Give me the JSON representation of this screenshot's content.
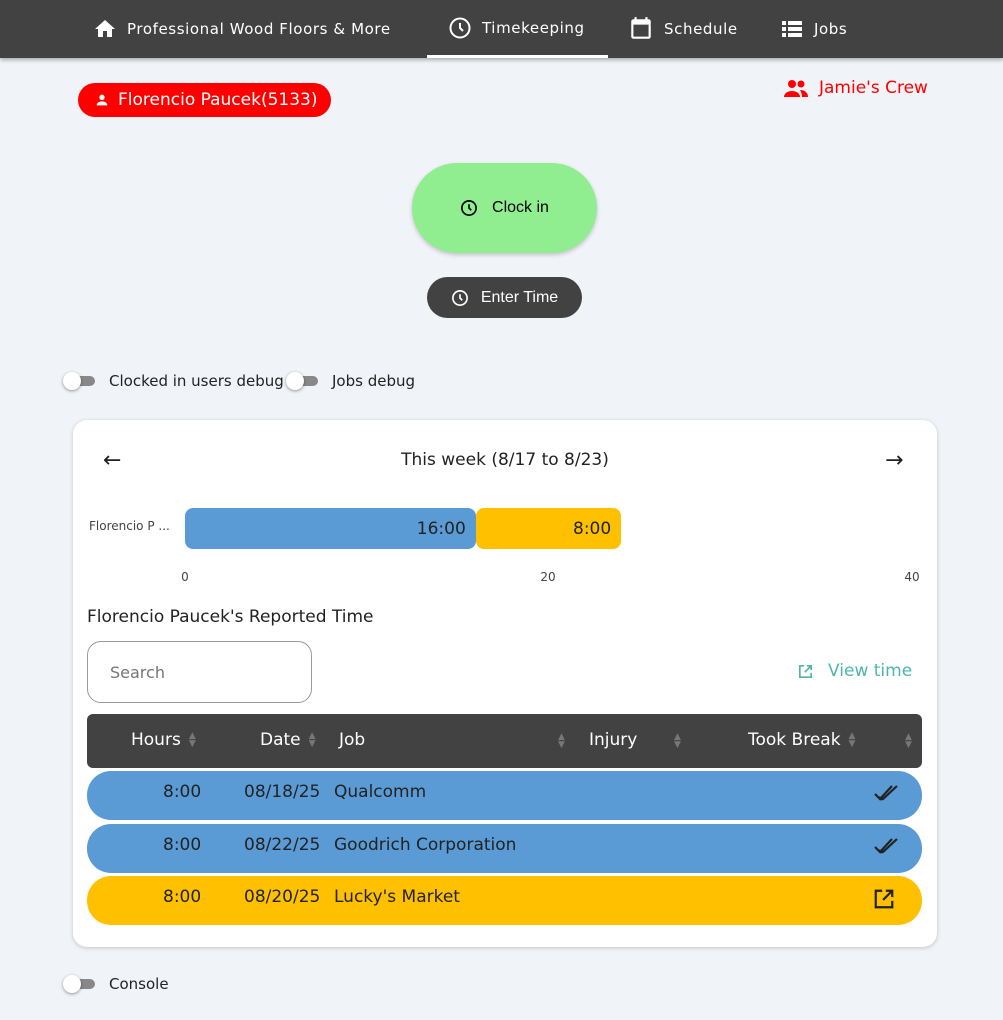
{
  "nav": {
    "items": [
      {
        "label": "Professional Wood Floors & More",
        "icon": "home-icon"
      },
      {
        "label": "Timekeeping",
        "icon": "clock-icon",
        "active": true
      },
      {
        "label": "Schedule",
        "icon": "calendar-icon"
      },
      {
        "label": "Jobs",
        "icon": "list-icon"
      }
    ]
  },
  "user": {
    "name": "Florencio Paucek(5133)",
    "crew": "Jamie's Crew",
    "color": "#ff0000"
  },
  "actions": {
    "clock_in": "Clock in",
    "enter_time": "Enter Time"
  },
  "toggles": {
    "clocked_in_debug": "Clocked in users debug",
    "jobs_debug": "Jobs debug",
    "console": "Console"
  },
  "week": {
    "label": "This week (8/17 to 8/23)"
  },
  "chart_data": {
    "type": "bar",
    "orientation": "horizontal",
    "stacked": true,
    "categories": [
      "Florencio P ..."
    ],
    "series": [
      {
        "values": [
          16
        ],
        "label": "16:00",
        "color": "#5b9bd5"
      },
      {
        "values": [
          8
        ],
        "label": "8:00",
        "color": "#ffc000"
      }
    ],
    "xlim": [
      0,
      40
    ],
    "xticks": [
      "0",
      "20",
      "40"
    ]
  },
  "reported": {
    "title": "Florencio Paucek's Reported Time",
    "search_placeholder": "Search",
    "view_time": "View time"
  },
  "table": {
    "headers": [
      "Hours",
      "Date",
      "Job",
      "Injury",
      "Took Break"
    ],
    "rows": [
      {
        "hours": "8:00",
        "date": "08/18/25",
        "job": "Qualcomm",
        "color": "#5b9bd5",
        "icon": "double-check-icon"
      },
      {
        "hours": "8:00",
        "date": "08/22/25",
        "job": "Goodrich Corporation",
        "color": "#5b9bd5",
        "icon": "double-check-icon"
      },
      {
        "hours": "8:00",
        "date": "08/20/25",
        "job": "Lucky's Market",
        "color": "#ffc000",
        "icon": "open-external-icon"
      }
    ]
  }
}
